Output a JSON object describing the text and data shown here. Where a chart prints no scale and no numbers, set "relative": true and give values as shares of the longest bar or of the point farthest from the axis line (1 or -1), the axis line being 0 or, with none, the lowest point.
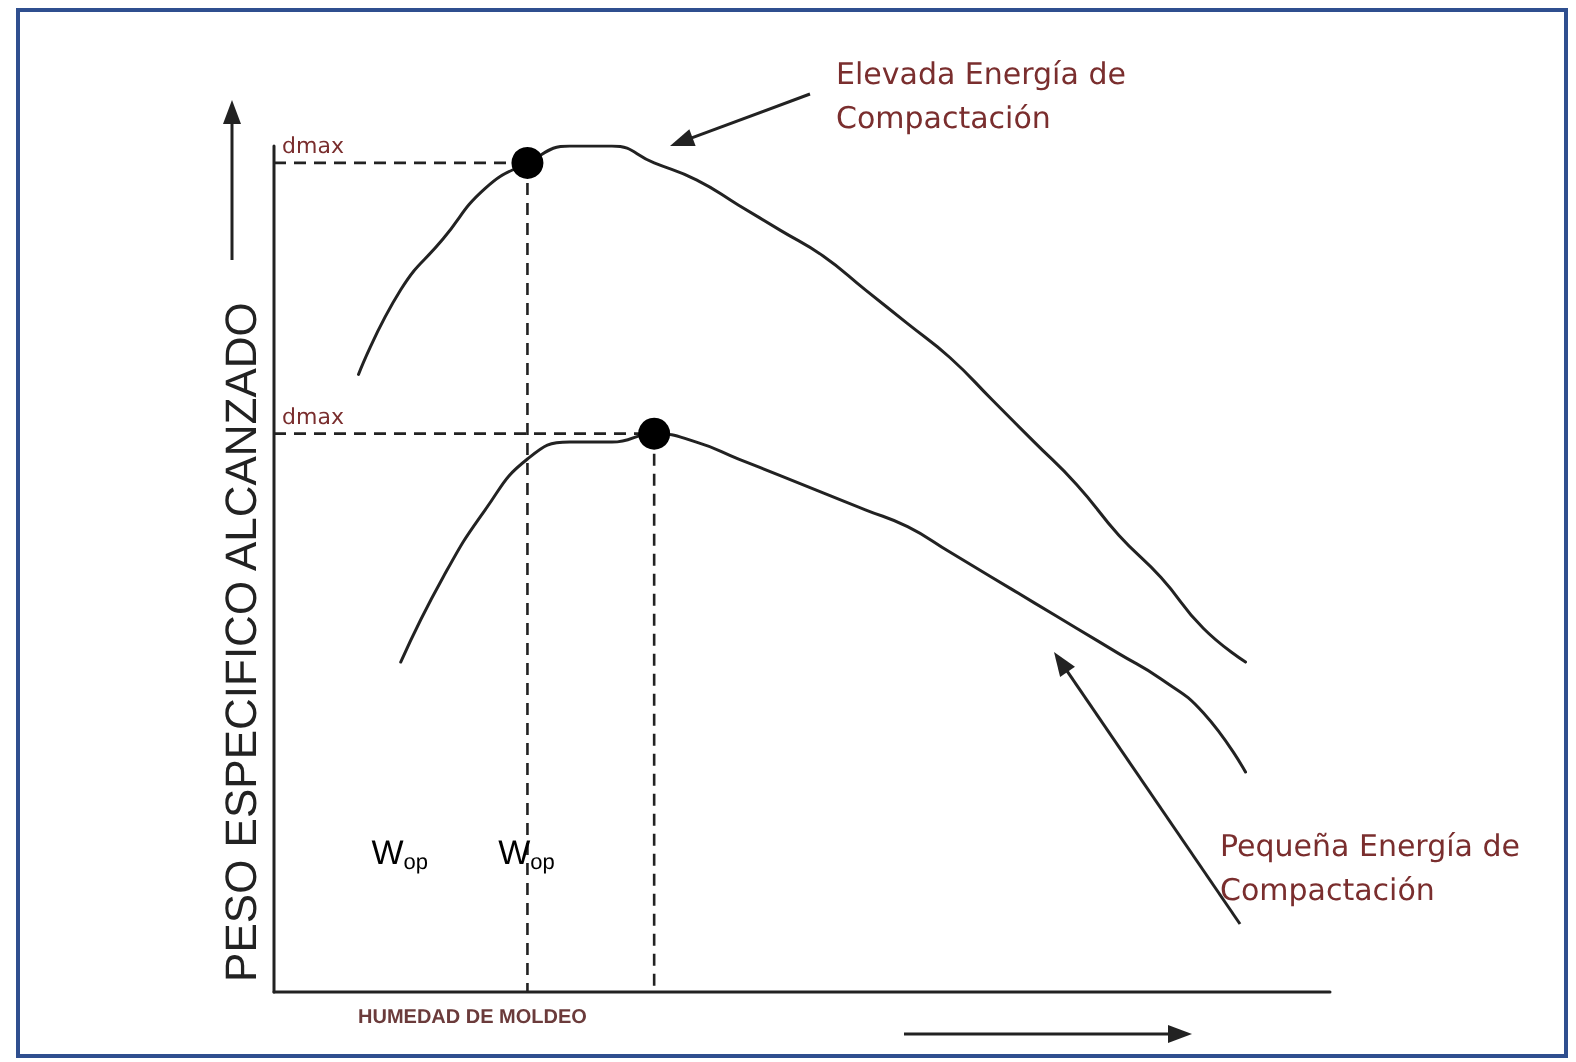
{
  "chart_data": {
    "type": "line",
    "relative": true,
    "ylabel": "PESO ESPECIFICO ALCANZADO",
    "xlabel": "HUMEDAD DE MOLDEO",
    "categories": [
      null,
      null,
      null,
      null,
      null,
      null,
      null,
      null,
      null,
      null,
      null,
      null,
      null,
      null,
      null,
      null,
      null,
      null,
      null,
      null,
      null,
      null,
      null,
      null,
      null,
      null
    ],
    "series": [
      {
        "name": "Elevada Energía de Compactación",
        "color": "#222222",
        "values": [
          null,
          null,
          0.73,
          0.83,
          0.89,
          0.95,
          0.98,
          1.0,
          1.0,
          0.98,
          0.96,
          0.93,
          0.9,
          0.87,
          0.83,
          0.79,
          0.75,
          0.7,
          0.65,
          0.6,
          0.54,
          0.49,
          0.43,
          0.39,
          null,
          null
        ]
      },
      {
        "name": "Pequeña Energía de Compactación",
        "color": "#222222",
        "values": [
          null,
          null,
          null,
          0.39,
          0.49,
          0.57,
          0.63,
          0.65,
          0.65,
          0.66,
          0.65,
          0.63,
          0.61,
          0.59,
          0.57,
          0.55,
          0.52,
          0.49,
          0.46,
          0.43,
          0.4,
          0.37,
          0.33,
          0.26,
          null,
          null
        ]
      }
    ],
    "ref_lines": [
      {
        "axis": "y",
        "value": 0.98,
        "label": "dmax",
        "color": "#222222",
        "line_style": "dashed"
      },
      {
        "axis": "y",
        "value": 0.66,
        "label": "dmax",
        "color": "#222222",
        "line_style": "dashed"
      }
    ],
    "annotations": [
      "W$_{op}$",
      "W$_{op}$"
    ],
    "legend": false,
    "grid": false,
    "marker": "none",
    "line_style": "solid"
  }
}
